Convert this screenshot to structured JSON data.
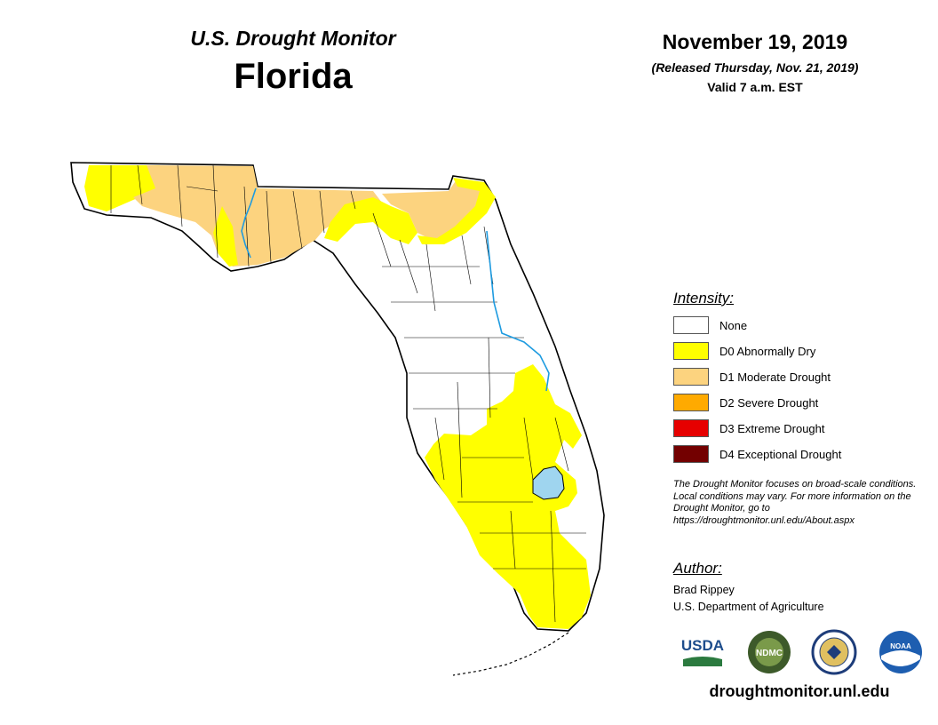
{
  "header": {
    "monitor_title": "U.S. Drought Monitor",
    "state": "Florida",
    "date": "November 19, 2019",
    "released": "(Released Thursday, Nov. 21, 2019)",
    "valid": "Valid 7 a.m. EST"
  },
  "legend": {
    "title": "Intensity:",
    "items": [
      {
        "label": "None",
        "color": "#ffffff"
      },
      {
        "label": "D0 Abnormally Dry",
        "color": "#ffff00"
      },
      {
        "label": "D1 Moderate Drought",
        "color": "#fcd37f"
      },
      {
        "label": "D2 Severe Drought",
        "color": "#ffaa00"
      },
      {
        "label": "D3 Extreme Drought",
        "color": "#e60000"
      },
      {
        "label": "D4 Exceptional Drought",
        "color": "#730000"
      }
    ]
  },
  "note": "The Drought Monitor focuses on broad-scale conditions. Local conditions may vary. For more information on the Drought Monitor, go to https://droughtmonitor.unl.edu/About.aspx",
  "author": {
    "title": "Author:",
    "name": "Brad Rippey",
    "org": "U.S. Department of Agriculture"
  },
  "logos": {
    "usda": "USDA",
    "ndmc": "NDMC",
    "noaa": "NOAA"
  },
  "url": "droughtmonitor.unl.edu",
  "colors": {
    "none": "#ffffff",
    "d0": "#ffff00",
    "d1": "#fcd37f",
    "water": "#9fd5ef",
    "river": "#1e9be0"
  }
}
